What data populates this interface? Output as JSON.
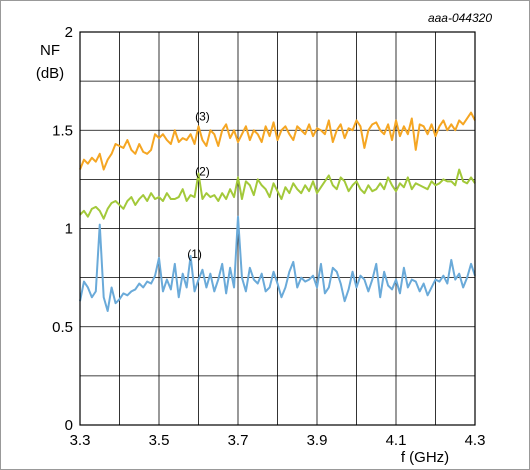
{
  "chart_data": {
    "type": "line",
    "code": "aaa-044320",
    "ylabel_line1": "NF",
    "ylabel_line2": "(dB)",
    "xlabel": "f (GHz)",
    "xlim": [
      3.3,
      4.3
    ],
    "ylim": [
      0,
      2
    ],
    "x_ticks": [
      "3.3",
      "3.5",
      "3.7",
      "3.9",
      "4.1",
      "4.3"
    ],
    "y_ticks": [
      "0",
      "0.5",
      "1",
      "1.5",
      "2"
    ],
    "grid": true,
    "x_start": 3.3,
    "x_step": 0.01,
    "series": [
      {
        "label": "(3)",
        "label_at": [
          3.61,
          1.55
        ],
        "color": "#f5a623",
        "values": [
          1.3,
          1.35,
          1.33,
          1.36,
          1.34,
          1.38,
          1.3,
          1.35,
          1.38,
          1.43,
          1.42,
          1.41,
          1.45,
          1.4,
          1.38,
          1.43,
          1.39,
          1.38,
          1.4,
          1.48,
          1.46,
          1.48,
          1.45,
          1.43,
          1.5,
          1.44,
          1.46,
          1.45,
          1.48,
          1.43,
          1.52,
          1.45,
          1.42,
          1.5,
          1.48,
          1.42,
          1.5,
          1.53,
          1.46,
          1.5,
          1.44,
          1.48,
          1.52,
          1.45,
          1.5,
          1.48,
          1.44,
          1.52,
          1.47,
          1.54,
          1.45,
          1.5,
          1.52,
          1.48,
          1.45,
          1.52,
          1.5,
          1.48,
          1.53,
          1.47,
          1.51,
          1.5,
          1.48,
          1.55,
          1.44,
          1.5,
          1.53,
          1.46,
          1.51,
          1.5,
          1.55,
          1.52,
          1.41,
          1.5,
          1.53,
          1.54,
          1.5,
          1.48,
          1.53,
          1.45,
          1.55,
          1.47,
          1.52,
          1.48,
          1.56,
          1.4,
          1.53,
          1.52,
          1.48,
          1.53,
          1.47,
          1.52,
          1.55,
          1.5,
          1.53,
          1.5,
          1.55,
          1.53,
          1.56,
          1.59,
          1.55
        ]
      },
      {
        "label": "(2)",
        "label_at": [
          3.61,
          1.27
        ],
        "color": "#a3c93a",
        "values": [
          1.07,
          1.09,
          1.06,
          1.1,
          1.11,
          1.09,
          1.05,
          1.1,
          1.13,
          1.14,
          1.12,
          1.1,
          1.14,
          1.16,
          1.12,
          1.15,
          1.17,
          1.14,
          1.18,
          1.15,
          1.16,
          1.14,
          1.18,
          1.15,
          1.15,
          1.16,
          1.2,
          1.14,
          1.17,
          1.16,
          1.28,
          1.15,
          1.18,
          1.16,
          1.17,
          1.14,
          1.18,
          1.15,
          1.2,
          1.16,
          1.26,
          1.15,
          1.24,
          1.22,
          1.17,
          1.25,
          1.22,
          1.2,
          1.16,
          1.23,
          1.19,
          1.15,
          1.21,
          1.18,
          1.23,
          1.2,
          1.18,
          1.22,
          1.19,
          1.24,
          1.18,
          1.21,
          1.24,
          1.27,
          1.22,
          1.2,
          1.26,
          1.24,
          1.19,
          1.22,
          1.24,
          1.2,
          1.18,
          1.22,
          1.19,
          1.2,
          1.23,
          1.2,
          1.26,
          1.22,
          1.19,
          1.23,
          1.21,
          1.26,
          1.2,
          1.23,
          1.22,
          1.21,
          1.2,
          1.24,
          1.22,
          1.23,
          1.25,
          1.24,
          1.24,
          1.22,
          1.3,
          1.24,
          1.23,
          1.26,
          1.23
        ]
      },
      {
        "label": "(1)",
        "label_at": [
          3.59,
          0.85
        ],
        "color": "#6aaad9",
        "values": [
          0.63,
          0.73,
          0.7,
          0.65,
          0.68,
          1.02,
          0.65,
          0.58,
          0.7,
          0.62,
          0.64,
          0.67,
          0.66,
          0.68,
          0.69,
          0.72,
          0.7,
          0.73,
          0.72,
          0.76,
          0.85,
          0.68,
          0.74,
          0.69,
          0.82,
          0.65,
          0.77,
          0.7,
          0.86,
          0.68,
          0.74,
          0.79,
          0.7,
          0.77,
          0.68,
          0.74,
          0.82,
          0.67,
          0.8,
          0.7,
          1.06,
          0.75,
          0.68,
          0.8,
          0.74,
          0.72,
          0.77,
          0.68,
          0.7,
          0.78,
          0.72,
          0.65,
          0.7,
          0.78,
          0.83,
          0.7,
          0.75,
          0.73,
          0.74,
          0.76,
          0.7,
          0.82,
          0.67,
          0.7,
          0.8,
          0.78,
          0.72,
          0.63,
          0.69,
          0.78,
          0.7,
          0.76,
          0.74,
          0.68,
          0.74,
          0.82,
          0.65,
          0.78,
          0.71,
          0.69,
          0.74,
          0.67,
          0.8,
          0.7,
          0.74,
          0.73,
          0.68,
          0.72,
          0.66,
          0.7,
          0.74,
          0.73,
          0.76,
          0.72,
          0.84,
          0.74,
          0.77,
          0.7,
          0.75,
          0.82,
          0.76
        ]
      }
    ]
  }
}
